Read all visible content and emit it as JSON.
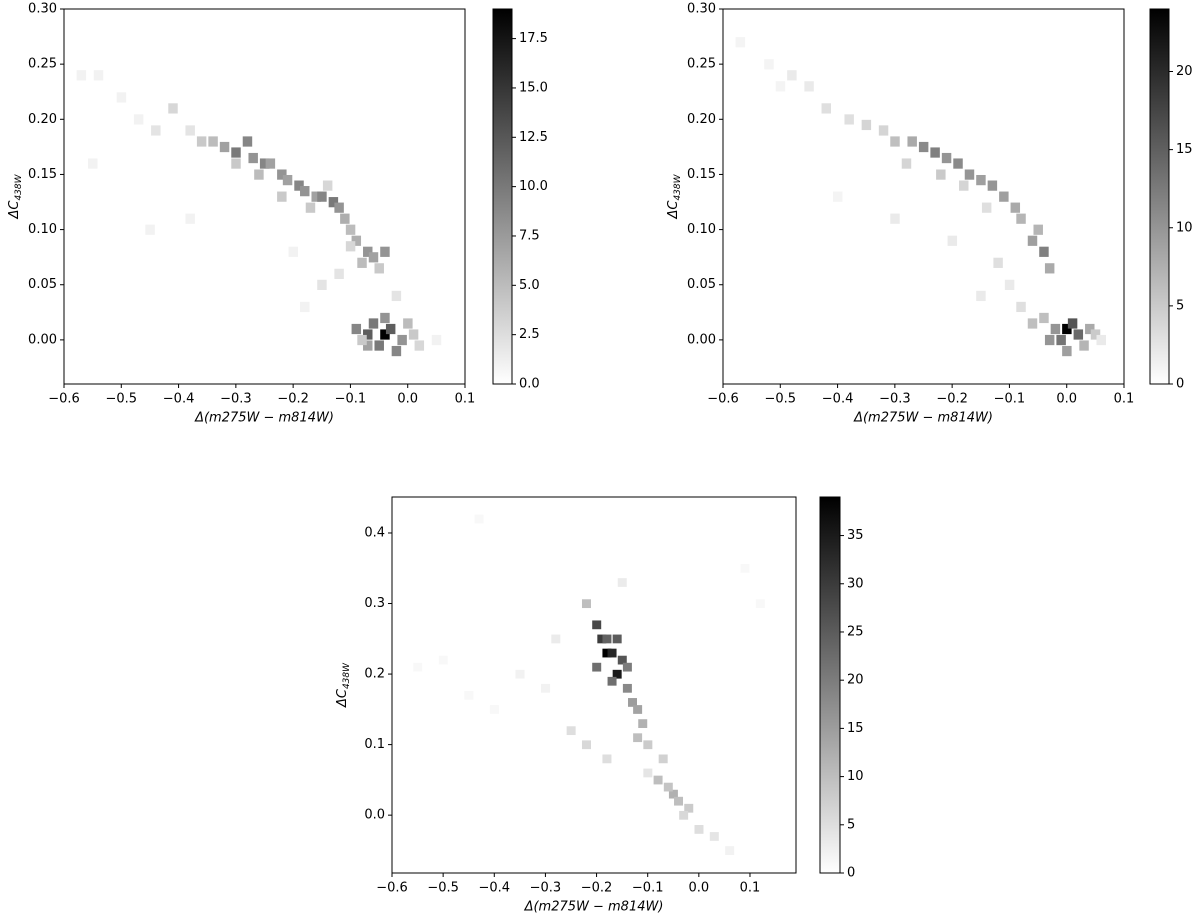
{
  "chart_data": [
    {
      "type": "hist2d",
      "cmap": "Greys",
      "xlabel": "Δ(m275W − m814W)",
      "ylabel": "ΔC",
      "ylabel_subscript": "438W",
      "xlim": [
        -0.6,
        0.1
      ],
      "ylim": [
        -0.04,
        0.3
      ],
      "xbin": 0.016,
      "ybin": 0.009,
      "xticks": [
        {
          "value": -0.6,
          "label": "−0.6"
        },
        {
          "value": -0.5,
          "label": "−0.5"
        },
        {
          "value": -0.4,
          "label": "−0.4"
        },
        {
          "value": -0.3,
          "label": "−0.3"
        },
        {
          "value": -0.2,
          "label": "−0.2"
        },
        {
          "value": -0.1,
          "label": "−0.1"
        },
        {
          "value": 0,
          "label": "0.0"
        },
        0.1
      ],
      "yticks": [
        {
          "value": 0,
          "label": "0.00"
        },
        0.05,
        {
          "value": 0.1,
          "label": "0.10"
        },
        0.15,
        {
          "value": 0.2,
          "label": "0.20"
        },
        0.25,
        {
          "value": 0.3,
          "label": "0.30"
        }
      ],
      "clim": [
        0,
        19
      ],
      "cticks": [
        {
          "value": 0,
          "label": "0.0"
        },
        2.5,
        {
          "value": 5,
          "label": "5.0"
        },
        7.5,
        {
          "value": 10,
          "label": "10.0"
        },
        12.5,
        {
          "value": 15,
          "label": "15.0"
        },
        17.5
      ],
      "x": [
        -0.57,
        -0.54,
        -0.5,
        -0.47,
        -0.44,
        -0.41,
        -0.38,
        -0.36,
        -0.34,
        -0.32,
        -0.3,
        -0.28,
        -0.27,
        -0.25,
        -0.24,
        -0.22,
        -0.21,
        -0.19,
        -0.18,
        -0.16,
        -0.15,
        -0.13,
        -0.12,
        -0.11,
        -0.1,
        -0.3,
        -0.26,
        -0.22,
        -0.17,
        -0.14,
        -0.09,
        -0.07,
        -0.06,
        -0.04,
        -0.08,
        -0.05,
        -0.1,
        -0.09,
        -0.07,
        -0.06,
        -0.04,
        -0.03,
        -0.01,
        0.01,
        -0.05,
        -0.02,
        -0.07,
        -0.04,
        0.0,
        -0.08,
        0.02,
        -0.45,
        -0.38,
        -0.2,
        -0.12,
        -0.15,
        -0.02,
        -0.18,
        0.05,
        -0.55
      ],
      "y": [
        0.24,
        0.24,
        0.22,
        0.2,
        0.19,
        0.21,
        0.19,
        0.18,
        0.18,
        0.175,
        0.17,
        0.18,
        0.165,
        0.16,
        0.16,
        0.15,
        0.145,
        0.14,
        0.135,
        0.13,
        0.13,
        0.125,
        0.12,
        0.11,
        0.1,
        0.16,
        0.15,
        0.13,
        0.12,
        0.14,
        0.09,
        0.08,
        0.075,
        0.08,
        0.07,
        0.065,
        0.085,
        0.01,
        0.005,
        0.015,
        0.005,
        0.01,
        0.0,
        0.005,
        -0.005,
        -0.01,
        -0.005,
        0.02,
        0.015,
        0.0,
        -0.005,
        0.1,
        0.11,
        0.08,
        0.06,
        0.05,
        0.04,
        0.03,
        0.0,
        0.16
      ],
      "counts": [
        1,
        1,
        1,
        1,
        2,
        3,
        2,
        4,
        5,
        7,
        10,
        9,
        8,
        9,
        7,
        8,
        7,
        9,
        8,
        7,
        9,
        10,
        8,
        6,
        5,
        4,
        5,
        4,
        4,
        3,
        6,
        8,
        7,
        8,
        5,
        4,
        3,
        9,
        12,
        10,
        19,
        12,
        8,
        4,
        10,
        9,
        7,
        8,
        5,
        4,
        3,
        1,
        1,
        1,
        2,
        2,
        2,
        1,
        1,
        1
      ]
    },
    {
      "type": "hist2d",
      "cmap": "Greys",
      "xlabel": "Δ(m275W − m814W)",
      "ylabel": "ΔC",
      "ylabel_subscript": "438W",
      "xlim": [
        -0.6,
        0.1
      ],
      "ylim": [
        -0.04,
        0.3
      ],
      "xbin": 0.016,
      "ybin": 0.009,
      "xticks": [
        {
          "value": -0.6,
          "label": "−0.6"
        },
        {
          "value": -0.5,
          "label": "−0.5"
        },
        {
          "value": -0.4,
          "label": "−0.4"
        },
        {
          "value": -0.3,
          "label": "−0.3"
        },
        {
          "value": -0.2,
          "label": "−0.2"
        },
        {
          "value": -0.1,
          "label": "−0.1"
        },
        {
          "value": 0,
          "label": "0.0"
        },
        0.1
      ],
      "yticks": [
        {
          "value": 0,
          "label": "0.00"
        },
        0.05,
        {
          "value": 0.1,
          "label": "0.10"
        },
        0.15,
        {
          "value": 0.2,
          "label": "0.20"
        },
        0.25,
        {
          "value": 0.3,
          "label": "0.30"
        }
      ],
      "clim": [
        0,
        24
      ],
      "cticks": [
        0,
        5,
        10,
        15,
        20
      ],
      "x": [
        -0.57,
        -0.52,
        -0.48,
        -0.45,
        -0.42,
        -0.38,
        -0.35,
        -0.32,
        -0.3,
        -0.27,
        -0.25,
        -0.23,
        -0.21,
        -0.19,
        -0.17,
        -0.15,
        -0.13,
        -0.11,
        -0.09,
        -0.08,
        -0.28,
        -0.22,
        -0.18,
        -0.14,
        -0.06,
        -0.04,
        -0.03,
        -0.05,
        -0.02,
        0.0,
        0.01,
        0.02,
        -0.01,
        -0.03,
        0.04,
        0.0,
        0.03,
        -0.04,
        0.05,
        -0.06,
        -0.4,
        -0.3,
        -0.2,
        -0.12,
        -0.1,
        -0.15,
        -0.08,
        0.06,
        -0.5
      ],
      "y": [
        0.27,
        0.25,
        0.24,
        0.23,
        0.21,
        0.2,
        0.195,
        0.19,
        0.18,
        0.18,
        0.175,
        0.17,
        0.165,
        0.16,
        0.15,
        0.145,
        0.14,
        0.13,
        0.12,
        0.11,
        0.16,
        0.15,
        0.14,
        0.12,
        0.09,
        0.08,
        0.065,
        0.1,
        0.01,
        0.01,
        0.015,
        0.005,
        0.0,
        0.0,
        0.01,
        -0.01,
        -0.005,
        0.02,
        0.005,
        0.015,
        0.13,
        0.11,
        0.09,
        0.07,
        0.05,
        0.04,
        0.03,
        0.0,
        0.23
      ],
      "counts": [
        1,
        1,
        2,
        2,
        3,
        3,
        4,
        4,
        6,
        8,
        11,
        12,
        10,
        11,
        10,
        9,
        10,
        9,
        8,
        7,
        4,
        5,
        4,
        3,
        9,
        12,
        8,
        7,
        10,
        24,
        16,
        14,
        13,
        10,
        8,
        9,
        7,
        6,
        5,
        6,
        1,
        2,
        2,
        3,
        2,
        2,
        3,
        2,
        1
      ]
    },
    {
      "type": "hist2d",
      "cmap": "Greys",
      "xlabel": "Δ(m275W − m814W)",
      "ylabel": "ΔC",
      "ylabel_subscript": "438W",
      "xlim": [
        -0.6,
        0.19
      ],
      "ylim": [
        -0.082,
        0.451
      ],
      "xbin": 0.017,
      "ybin": 0.012,
      "xticks": [
        {
          "value": -0.6,
          "label": "−0.6"
        },
        {
          "value": -0.5,
          "label": "−0.5"
        },
        {
          "value": -0.4,
          "label": "−0.4"
        },
        {
          "value": -0.3,
          "label": "−0.3"
        },
        {
          "value": -0.2,
          "label": "−0.2"
        },
        {
          "value": -0.1,
          "label": "−0.1"
        },
        {
          "value": 0,
          "label": "0.0"
        },
        0.1
      ],
      "yticks": [
        {
          "value": 0,
          "label": "0.0"
        },
        0.1,
        0.2,
        0.3,
        0.4
      ],
      "clim": [
        0,
        39
      ],
      "cticks": [
        0,
        5,
        10,
        15,
        20,
        25,
        30,
        35
      ],
      "x": [
        -0.2,
        -0.19,
        -0.18,
        -0.17,
        -0.16,
        -0.15,
        -0.2,
        -0.18,
        -0.16,
        -0.14,
        -0.13,
        -0.12,
        -0.11,
        -0.1,
        -0.22,
        -0.14,
        -0.17,
        -0.12,
        -0.08,
        -0.05,
        -0.04,
        -0.02,
        -0.06,
        -0.03,
        0.0,
        0.03,
        0.06,
        -0.07,
        -0.25,
        -0.22,
        -0.18,
        -0.1,
        -0.3,
        -0.35,
        -0.4,
        -0.45,
        -0.5,
        -0.55,
        -0.28,
        -0.15,
        0.09,
        0.12,
        -0.43
      ],
      "y": [
        0.27,
        0.25,
        0.23,
        0.23,
        0.2,
        0.22,
        0.21,
        0.25,
        0.25,
        0.18,
        0.16,
        0.15,
        0.13,
        0.1,
        0.3,
        0.21,
        0.19,
        0.11,
        0.05,
        0.03,
        0.02,
        0.01,
        0.04,
        0.0,
        -0.02,
        -0.03,
        -0.05,
        0.08,
        0.12,
        0.1,
        0.08,
        0.06,
        0.18,
        0.2,
        0.15,
        0.17,
        0.22,
        0.21,
        0.25,
        0.33,
        0.35,
        0.3,
        0.42
      ],
      "counts": [
        28,
        30,
        39,
        33,
        35,
        26,
        22,
        24,
        25,
        18,
        15,
        14,
        12,
        8,
        10,
        20,
        22,
        10,
        10,
        12,
        10,
        8,
        9,
        6,
        5,
        4,
        2,
        7,
        5,
        6,
        5,
        4,
        2,
        2,
        1,
        1,
        1,
        1,
        3,
        3,
        1,
        1,
        1
      ]
    }
  ]
}
